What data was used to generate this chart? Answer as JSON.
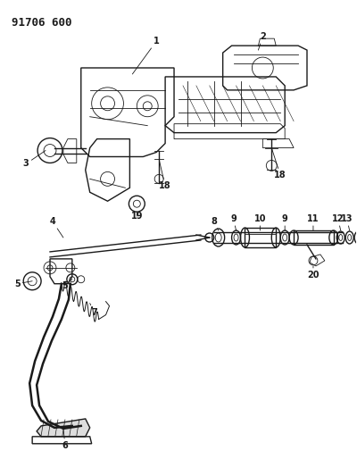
{
  "bg_color": "#ffffff",
  "title_text": "91706 600",
  "line_color": "#1a1a1a",
  "lw_main": 1.0,
  "lw_thin": 0.6
}
